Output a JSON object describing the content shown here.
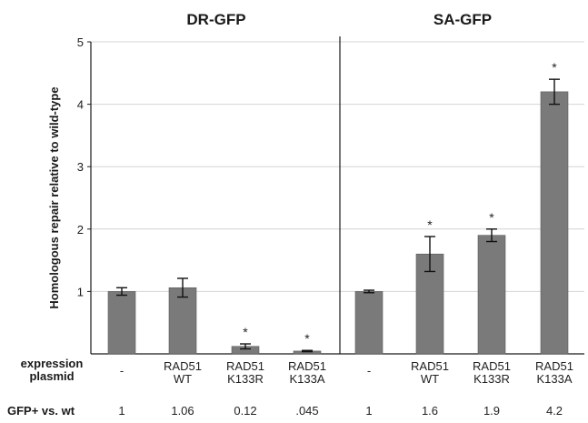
{
  "chart_data": {
    "type": "bar",
    "ylabel": "Homologous repair relative to wild-type",
    "ylim": [
      0,
      5
    ],
    "yticks": [
      1,
      2,
      3,
      4,
      5
    ],
    "grid": true,
    "panels": [
      {
        "title": "DR-GFP",
        "bars": [
          {
            "label_lines": [
              "-"
            ],
            "value": 1.0,
            "err": 0.06,
            "star": false,
            "ratio": "1"
          },
          {
            "label_lines": [
              "RAD51",
              "WT"
            ],
            "value": 1.06,
            "err": 0.15,
            "star": false,
            "ratio": "1.06"
          },
          {
            "label_lines": [
              "RAD51",
              "K133R"
            ],
            "value": 0.12,
            "err": 0.04,
            "star": true,
            "ratio": "0.12"
          },
          {
            "label_lines": [
              "RAD51",
              "K133A"
            ],
            "value": 0.045,
            "err": 0.01,
            "star": true,
            "ratio": ".045"
          }
        ]
      },
      {
        "title": "SA-GFP",
        "bars": [
          {
            "label_lines": [
              "-"
            ],
            "value": 1.0,
            "err": 0.02,
            "star": false,
            "ratio": "1"
          },
          {
            "label_lines": [
              "RAD51",
              "WT"
            ],
            "value": 1.6,
            "err": 0.28,
            "star": true,
            "ratio": "1.6"
          },
          {
            "label_lines": [
              "RAD51",
              "K133R"
            ],
            "value": 1.9,
            "err": 0.1,
            "star": true,
            "ratio": "1.9"
          },
          {
            "label_lines": [
              "RAD51",
              "K133A"
            ],
            "value": 4.2,
            "err": 0.2,
            "star": true,
            "ratio": "4.2"
          }
        ]
      }
    ],
    "row_labels": {
      "expression": [
        "expression",
        "plasmid"
      ],
      "ratio": "GFP+ vs. wt"
    },
    "star_symbol": "*",
    "colors": {
      "bar": "#7a7a7a",
      "bar_edge": "#5a5a5a",
      "grid": "#d4d4d4",
      "axis": "#1a1a1a"
    }
  }
}
